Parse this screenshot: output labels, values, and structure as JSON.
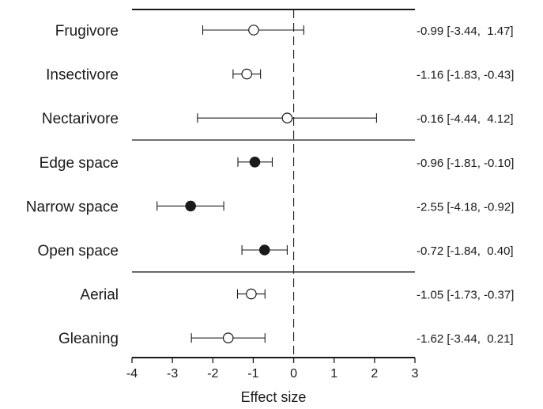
{
  "chart_data": {
    "type": "forest",
    "xlabel": "Effect size",
    "xlim": [
      -4,
      3
    ],
    "x_ticks": [
      "-4",
      "-3",
      "-2",
      "-1",
      "0",
      "1",
      "2",
      "3"
    ],
    "reference_line": 0,
    "groups": [
      {
        "rows": [
          0,
          1,
          2
        ],
        "marker": "open-circle"
      },
      {
        "rows": [
          3,
          4,
          5
        ],
        "marker": "filled-circle"
      },
      {
        "rows": [
          6,
          7
        ],
        "marker": "open-circle"
      }
    ],
    "rows": [
      {
        "label": "Frugivore",
        "estimate": -0.99,
        "lower": -2.25,
        "upper": 0.25,
        "text": "-0.99 [-3.44,  1.47]"
      },
      {
        "label": "Insectivore",
        "estimate": -1.16,
        "lower": -1.5,
        "upper": -0.82,
        "text": "-1.16 [-1.83, -0.43]"
      },
      {
        "label": "Nectarivore",
        "estimate": -0.16,
        "lower": -2.38,
        "upper": 2.05,
        "text": "-0.16 [-4.44,  4.12]"
      },
      {
        "label": "Edge space",
        "estimate": -0.96,
        "lower": -1.38,
        "upper": -0.53,
        "text": "-0.96 [-1.81, -0.10]"
      },
      {
        "label": "Narrow space",
        "estimate": -2.55,
        "lower": -3.38,
        "upper": -1.73,
        "text": "-2.55 [-4.18, -0.92]"
      },
      {
        "label": "Open space",
        "estimate": -0.72,
        "lower": -1.28,
        "upper": -0.16,
        "text": "-0.72 [-1.84,  0.40]"
      },
      {
        "label": "Aerial",
        "estimate": -1.05,
        "lower": -1.39,
        "upper": -0.71,
        "text": "-1.05 [-1.73, -0.37]"
      },
      {
        "label": "Gleaning",
        "estimate": -1.62,
        "lower": -2.53,
        "upper": -0.71,
        "text": "-1.62 [-3.44,  0.21]"
      }
    ]
  }
}
